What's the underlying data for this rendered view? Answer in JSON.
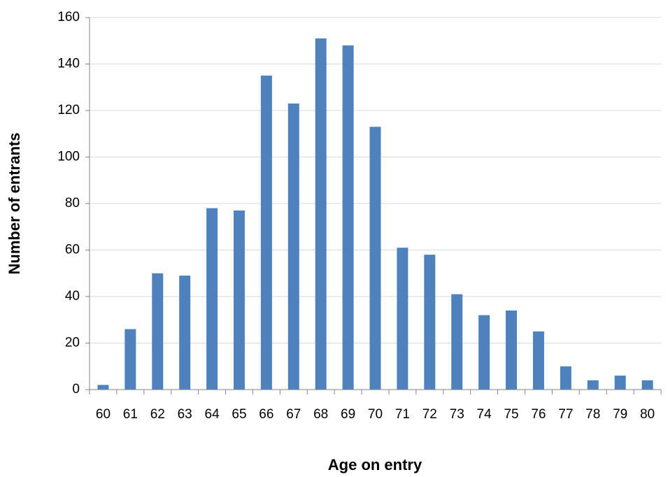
{
  "chart_data": {
    "type": "bar",
    "x_label": "Age on entry",
    "y_label": "Number of entrants",
    "categories": [
      "60",
      "61",
      "62",
      "63",
      "64",
      "65",
      "66",
      "67",
      "68",
      "69",
      "70",
      "71",
      "72",
      "73",
      "74",
      "75",
      "76",
      "77",
      "78",
      "79",
      "80"
    ],
    "values": [
      2,
      26,
      50,
      49,
      78,
      77,
      135,
      123,
      151,
      148,
      113,
      61,
      58,
      41,
      32,
      34,
      25,
      10,
      4,
      6,
      4
    ],
    "color": "#4f81bd",
    "ylim": [
      0,
      160
    ],
    "yticks": [
      0,
      20,
      40,
      60,
      80,
      100,
      120,
      140,
      160
    ],
    "grid": true
  }
}
